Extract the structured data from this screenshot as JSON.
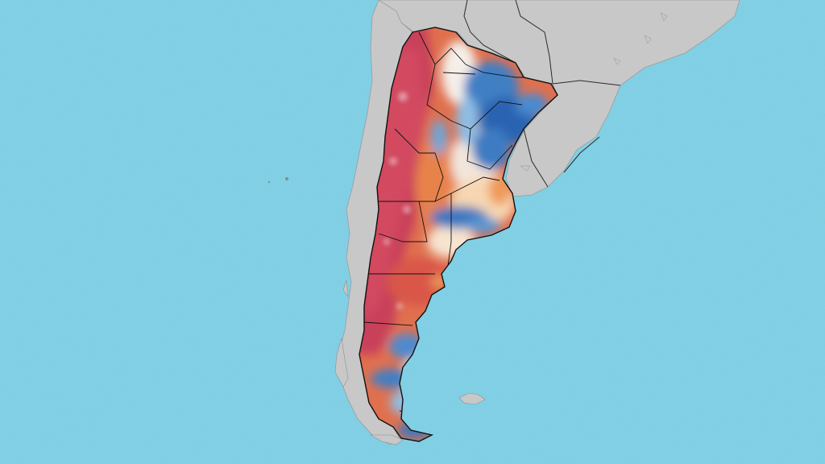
{
  "map": {
    "type": "choropleth-raster",
    "region": "Argentina",
    "labels_shown": false,
    "colors": {
      "ocean": "#7fd0e6",
      "land": "#c7c7c7",
      "land_shadow": "#a9a9a9",
      "border": "#1a1a1a",
      "hot_deep": "#c33a52",
      "hot": "#d9504a",
      "warm": "#ec8a52",
      "mild": "#f6c58e",
      "neutral": "#f4f1ee",
      "cool": "#9cc9e6",
      "cold": "#3f7fc4",
      "cold_deep": "#2a63b2"
    }
  }
}
